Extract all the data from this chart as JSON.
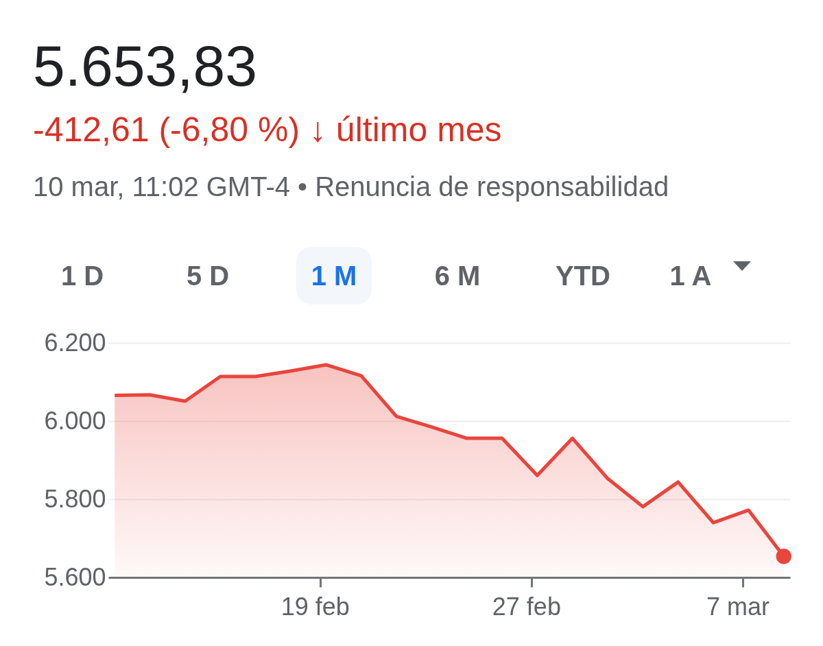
{
  "chart_data": {
    "type": "area",
    "title": "5.653,83",
    "subtitle": "-412,61 (-6,80 %) ↓ último mes",
    "annotations": [
      "10 mar, 11:02 GMT-4 • Renuncia de responsabilidad",
      "1 D",
      "5 D",
      "1 M",
      "6 M",
      "YTD",
      "1 A"
    ],
    "categories": [
      null,
      null,
      null,
      null,
      null,
      null,
      "19 feb",
      null,
      null,
      null,
      null,
      null,
      "27 feb",
      null,
      null,
      null,
      null,
      null,
      "7 mar",
      null
    ],
    "series": [
      {
        "color": "#e8453c",
        "values": [
          6066,
          6067,
          6051,
          6114,
          6114,
          6128,
          6144,
          6116,
          6012,
          5985,
          5956,
          5956,
          5861,
          5956,
          5853,
          5781,
          5844,
          5740,
          5772,
          5654
        ]
      },
      {
        "type": "scatter",
        "color": "#e8453c",
        "marker": "circle",
        "values": [
          null,
          null,
          null,
          null,
          null,
          null,
          null,
          null,
          null,
          null,
          null,
          null,
          null,
          null,
          null,
          null,
          null,
          null,
          null,
          5654
        ]
      }
    ],
    "ylim": [
      5600,
      6200
    ],
    "yticks": [
      {
        "value": 5600,
        "label": "5.600"
      },
      {
        "value": 5800,
        "label": "5.800"
      },
      {
        "value": 6000,
        "label": "6.000"
      },
      {
        "value": 6200,
        "label": "6.200"
      }
    ],
    "grid": "y",
    "line_style": "solid"
  }
}
